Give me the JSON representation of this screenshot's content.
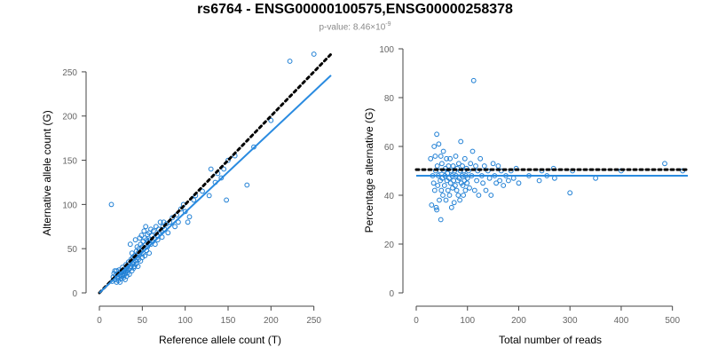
{
  "title": "rs6764 - ENSG00000100575,ENSG00000258378",
  "subtitle": {
    "prefix": "p-value: 8.46×10",
    "exponent": "-9"
  },
  "colors": {
    "points": "#1f7fd4",
    "fit_line": "#2a8be0",
    "reference_line": "#000000"
  },
  "chart_data": [
    {
      "type": "scatter",
      "xlabel": "Reference allele count (T)",
      "ylabel": "Alternative allele count (G)",
      "xlim": [
        0,
        270
      ],
      "ylim": [
        0,
        270
      ],
      "xticks": [
        0,
        50,
        100,
        150,
        200,
        250
      ],
      "yticks": [
        0,
        50,
        100,
        150,
        200,
        250
      ],
      "lines": [
        {
          "style": "dotted",
          "color": "#000000",
          "x": [
            0,
            270
          ],
          "y": [
            0,
            270
          ]
        },
        {
          "style": "solid",
          "color": "#2a8be0",
          "x": [
            0,
            270
          ],
          "y": [
            0,
            246
          ]
        }
      ],
      "points": [
        [
          14,
          100
        ],
        [
          15,
          13
        ],
        [
          16,
          18
        ],
        [
          17,
          22
        ],
        [
          18,
          15
        ],
        [
          18,
          25
        ],
        [
          19,
          20
        ],
        [
          20,
          12
        ],
        [
          20,
          25
        ],
        [
          21,
          17
        ],
        [
          22,
          22
        ],
        [
          22,
          14
        ],
        [
          23,
          18
        ],
        [
          23,
          26
        ],
        [
          24,
          20
        ],
        [
          24,
          12
        ],
        [
          25,
          23
        ],
        [
          25,
          16
        ],
        [
          26,
          25
        ],
        [
          26,
          19
        ],
        [
          27,
          21
        ],
        [
          27,
          29
        ],
        [
          28,
          17
        ],
        [
          28,
          24
        ],
        [
          29,
          20
        ],
        [
          29,
          27
        ],
        [
          30,
          22
        ],
        [
          30,
          15
        ],
        [
          31,
          25
        ],
        [
          31,
          32
        ],
        [
          32,
          28
        ],
        [
          32,
          19
        ],
        [
          33,
          30
        ],
        [
          33,
          23
        ],
        [
          34,
          26
        ],
        [
          34,
          35
        ],
        [
          35,
          33
        ],
        [
          35,
          21
        ],
        [
          36,
          28
        ],
        [
          36,
          55
        ],
        [
          37,
          30
        ],
        [
          37,
          38
        ],
        [
          38,
          25
        ],
        [
          38,
          45
        ],
        [
          39,
          33
        ],
        [
          39,
          40
        ],
        [
          40,
          35
        ],
        [
          40,
          28
        ],
        [
          41,
          42
        ],
        [
          41,
          30
        ],
        [
          42,
          36
        ],
        [
          42,
          60
        ],
        [
          43,
          47
        ],
        [
          43,
          33
        ],
        [
          44,
          40
        ],
        [
          44,
          52
        ],
        [
          45,
          45
        ],
        [
          45,
          30
        ],
        [
          46,
          50
        ],
        [
          46,
          38
        ],
        [
          47,
          43
        ],
        [
          47,
          62
        ],
        [
          48,
          55
        ],
        [
          48,
          36
        ],
        [
          49,
          48
        ],
        [
          49,
          65
        ],
        [
          50,
          52
        ],
        [
          50,
          40
        ],
        [
          51,
          58
        ],
        [
          51,
          45
        ],
        [
          52,
          70
        ],
        [
          52,
          50
        ],
        [
          53,
          62
        ],
        [
          53,
          42
        ],
        [
          54,
          55
        ],
        [
          54,
          75
        ],
        [
          55,
          60
        ],
        [
          55,
          48
        ],
        [
          56,
          66
        ],
        [
          56,
          52
        ],
        [
          57,
          58
        ],
        [
          58,
          68
        ],
        [
          58,
          45
        ],
        [
          59,
          60
        ],
        [
          60,
          72
        ],
        [
          60,
          55
        ],
        [
          61,
          65
        ],
        [
          62,
          58
        ],
        [
          63,
          70
        ],
        [
          64,
          62
        ],
        [
          65,
          55
        ],
        [
          66,
          75
        ],
        [
          67,
          65
        ],
        [
          68,
          60
        ],
        [
          69,
          72
        ],
        [
          70,
          68
        ],
        [
          71,
          80
        ],
        [
          72,
          70
        ],
        [
          73,
          63
        ],
        [
          74,
          75
        ],
        [
          75,
          80
        ],
        [
          76,
          72
        ],
        [
          78,
          78
        ],
        [
          80,
          68
        ],
        [
          82,
          80
        ],
        [
          85,
          85
        ],
        [
          88,
          75
        ],
        [
          90,
          88
        ],
        [
          92,
          80
        ],
        [
          95,
          95
        ],
        [
          98,
          100
        ],
        [
          100,
          92
        ],
        [
          103,
          80
        ],
        [
          105,
          86
        ],
        [
          110,
          105
        ],
        [
          112,
          110
        ],
        [
          120,
          115
        ],
        [
          128,
          110
        ],
        [
          130,
          140
        ],
        [
          135,
          125
        ],
        [
          138,
          135
        ],
        [
          142,
          130
        ],
        [
          145,
          140
        ],
        [
          148,
          105
        ],
        [
          150,
          150
        ],
        [
          158,
          155
        ],
        [
          172,
          122
        ],
        [
          180,
          165
        ],
        [
          200,
          195
        ],
        [
          222,
          262
        ],
        [
          250,
          270
        ]
      ]
    },
    {
      "type": "scatter",
      "xlabel": "Total number of reads",
      "ylabel": "Percentage alternative (G)",
      "xlim": [
        0,
        530
      ],
      "ylim": [
        0,
        100
      ],
      "xticks": [
        0,
        100,
        200,
        300,
        400,
        500
      ],
      "yticks": [
        0,
        20,
        40,
        60,
        80,
        100
      ],
      "lines": [
        {
          "style": "dotted",
          "color": "#000000",
          "x": [
            0,
            530
          ],
          "y": [
            50.5,
            50.5
          ]
        },
        {
          "style": "solid",
          "color": "#2a8be0",
          "x": [
            0,
            530
          ],
          "y": [
            48,
            48
          ]
        }
      ],
      "points": [
        [
          28,
          55
        ],
        [
          30,
          36
        ],
        [
          32,
          48
        ],
        [
          34,
          45
        ],
        [
          35,
          60
        ],
        [
          36,
          42
        ],
        [
          37,
          56
        ],
        [
          38,
          50
        ],
        [
          39,
          35
        ],
        [
          40,
          34
        ],
        [
          40,
          65
        ],
        [
          41,
          52
        ],
        [
          42,
          44
        ],
        [
          43,
          48
        ],
        [
          44,
          61
        ],
        [
          45,
          38
        ],
        [
          46,
          50
        ],
        [
          47,
          46
        ],
        [
          48,
          56
        ],
        [
          48,
          30
        ],
        [
          49,
          42
        ],
        [
          50,
          53
        ],
        [
          51,
          47
        ],
        [
          52,
          40
        ],
        [
          53,
          58
        ],
        [
          54,
          50
        ],
        [
          55,
          44
        ],
        [
          56,
          48
        ],
        [
          57,
          51
        ],
        [
          58,
          38
        ],
        [
          59,
          55
        ],
        [
          60,
          46
        ],
        [
          61,
          49
        ],
        [
          62,
          42
        ],
        [
          63,
          52
        ],
        [
          64,
          47
        ],
        [
          65,
          40
        ],
        [
          66,
          55
        ],
        [
          67,
          45
        ],
        [
          68,
          50
        ],
        [
          69,
          35
        ],
        [
          70,
          48
        ],
        [
          71,
          43
        ],
        [
          72,
          52
        ],
        [
          73,
          46
        ],
        [
          74,
          37
        ],
        [
          75,
          50
        ],
        [
          76,
          44
        ],
        [
          77,
          56
        ],
        [
          78,
          48
        ],
        [
          79,
          42
        ],
        [
          80,
          51
        ],
        [
          81,
          46
        ],
        [
          82,
          40
        ],
        [
          83,
          53
        ],
        [
          84,
          47
        ],
        [
          85,
          38
        ],
        [
          86,
          50
        ],
        [
          87,
          62
        ],
        [
          88,
          45
        ],
        [
          89,
          48
        ],
        [
          90,
          52
        ],
        [
          91,
          44
        ],
        [
          92,
          40
        ],
        [
          93,
          50
        ],
        [
          94,
          46
        ],
        [
          95,
          55
        ],
        [
          96,
          42
        ],
        [
          97,
          48
        ],
        [
          98,
          51
        ],
        [
          99,
          45
        ],
        [
          100,
          47
        ],
        [
          102,
          50
        ],
        [
          104,
          43
        ],
        [
          106,
          53
        ],
        [
          108,
          48
        ],
        [
          110,
          58
        ],
        [
          112,
          87
        ],
        [
          114,
          42
        ],
        [
          116,
          52
        ],
        [
          118,
          46
        ],
        [
          120,
          50
        ],
        [
          122,
          40
        ],
        [
          125,
          55
        ],
        [
          128,
          48
        ],
        [
          130,
          45
        ],
        [
          133,
          52
        ],
        [
          136,
          42
        ],
        [
          140,
          50
        ],
        [
          143,
          47
        ],
        [
          146,
          40
        ],
        [
          150,
          53
        ],
        [
          153,
          48
        ],
        [
          156,
          45
        ],
        [
          160,
          52
        ],
        [
          163,
          46
        ],
        [
          166,
          50
        ],
        [
          170,
          44
        ],
        [
          175,
          48
        ],
        [
          180,
          46
        ],
        [
          185,
          50
        ],
        [
          190,
          47
        ],
        [
          195,
          51
        ],
        [
          200,
          45
        ],
        [
          220,
          48
        ],
        [
          240,
          46
        ],
        [
          245,
          50
        ],
        [
          255,
          48
        ],
        [
          268,
          51
        ],
        [
          270,
          47
        ],
        [
          300,
          41
        ],
        [
          305,
          50
        ],
        [
          350,
          47
        ],
        [
          400,
          50
        ],
        [
          485,
          53
        ],
        [
          520,
          50
        ]
      ]
    }
  ]
}
